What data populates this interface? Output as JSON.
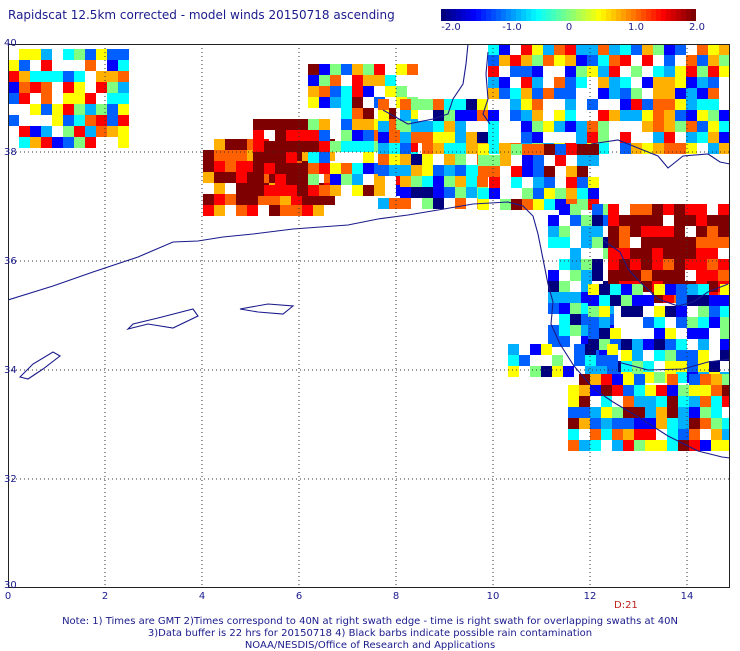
{
  "title": "Rapidscat 12.5km corrected - model winds 20150718 ascending",
  "colorbar": {
    "ticks": [
      "-2.0",
      "-1.0",
      "0",
      "1.0",
      "2.0"
    ],
    "colors": [
      "#00007f",
      "#0000ff",
      "#0080ff",
      "#00ffff",
      "#80ff80",
      "#ffff00",
      "#ff8000",
      "#ff0000",
      "#7f0000"
    ]
  },
  "axes": {
    "y_ticks": [
      "40",
      "38",
      "36",
      "34",
      "32",
      "30"
    ],
    "x_ticks": [
      "0",
      "2",
      "4",
      "6",
      "8",
      "10",
      "12",
      "14"
    ]
  },
  "stamp": "D:21",
  "notes": [
    "Note: 1) Times are GMT 2)Times correspond to 40N at right swath edge - time is right swath for overlapping swaths at 40N",
    "3)Data buffer is 22 hrs for 20150718 4) Black barbs indicate possible rain contamination",
    "NOAA/NESDIS/Office of Research and Applications"
  ],
  "colors": {
    "coast": "#1a1a8c",
    "grid": "#333333",
    "text": "#1a1a8c"
  }
}
